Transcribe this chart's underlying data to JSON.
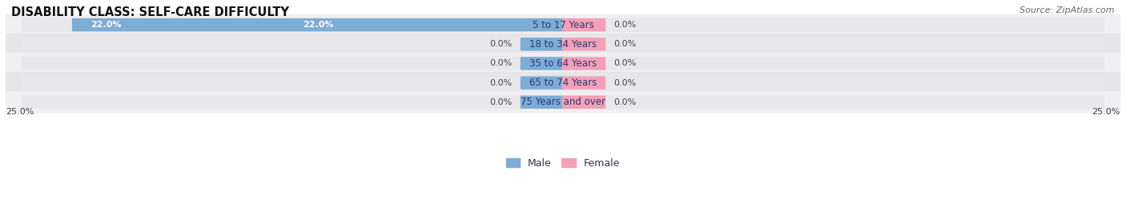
{
  "title": "DISABILITY CLASS: SELF-CARE DIFFICULTY",
  "source": "Source: ZipAtlas.com",
  "categories": [
    "5 to 17 Years",
    "18 to 34 Years",
    "35 to 64 Years",
    "65 to 74 Years",
    "75 Years and over"
  ],
  "male_values": [
    22.0,
    0.0,
    0.0,
    0.0,
    0.0
  ],
  "female_values": [
    0.0,
    0.0,
    0.0,
    0.0,
    0.0
  ],
  "male_color": "#7badd6",
  "female_color": "#f4a0b8",
  "bar_bg_color": "#e8e8ea",
  "row_bg_even": "#f0f0f2",
  "row_bg_odd": "#e6e6e8",
  "max_value": 25.0,
  "x_left_label": "25.0%",
  "x_right_label": "25.0%",
  "title_fontsize": 10.5,
  "label_fontsize": 8.0,
  "category_fontsize": 8.5,
  "legend_fontsize": 9,
  "source_fontsize": 8
}
